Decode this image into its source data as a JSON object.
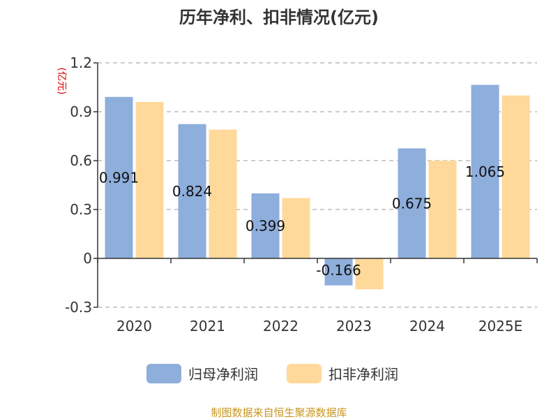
{
  "chart_data": {
    "type": "bar",
    "title": "历年净利、扣非情况(亿元)",
    "unit_label": "(亿元)",
    "categories": [
      "2020",
      "2021",
      "2022",
      "2023",
      "2024",
      "2025E"
    ],
    "series": [
      {
        "name": "归母净利润",
        "color": "#8eaedb",
        "values": [
          0.991,
          0.824,
          0.399,
          -0.166,
          0.675,
          1.065
        ]
      },
      {
        "name": "扣非净利润",
        "color": "#ffd99a",
        "values": [
          0.96,
          0.79,
          0.37,
          -0.19,
          0.6,
          1.0
        ]
      }
    ],
    "data_labels": [
      "0.991",
      "0.824",
      "0.399",
      "-0.166",
      "0.675",
      "1.065"
    ],
    "yticks": [
      "1.2",
      "0.9",
      "0.6",
      "0.3",
      "0",
      "-0.3"
    ],
    "ytick_values": [
      1.2,
      0.9,
      0.6,
      0.3,
      0,
      -0.3
    ],
    "ylim": [
      -0.3,
      1.2
    ],
    "grid": true,
    "legend_position": "bottom-center"
  },
  "source": "制图数据来自恒生聚源数据库"
}
